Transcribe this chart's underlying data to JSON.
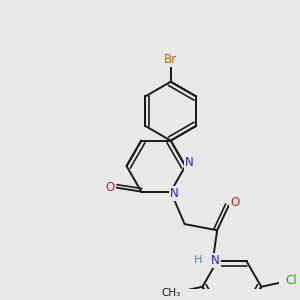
{
  "background_color": "#e8e8e8",
  "bond_color": "#1a1a1a",
  "bond_width": 1.4,
  "atoms": {
    "Br": {
      "color": "#cc6600"
    },
    "N": {
      "color": "#2222cc"
    },
    "O": {
      "color": "#cc2222"
    },
    "Cl": {
      "color": "#22aa22"
    },
    "H": {
      "color": "#558888"
    }
  },
  "figsize": [
    3.0,
    3.0
  ],
  "dpi": 100
}
